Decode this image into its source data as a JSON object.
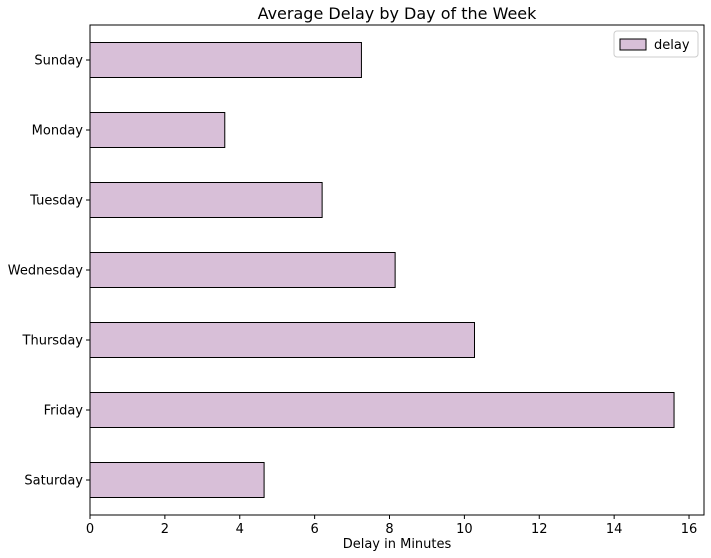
{
  "chart_data": {
    "type": "bar",
    "orientation": "horizontal",
    "title": "Average Delay by Day of the Week",
    "xlabel": "Delay in Minutes",
    "ylabel": "",
    "xlim": [
      0,
      16.4
    ],
    "x_ticks": [
      0,
      2,
      4,
      6,
      8,
      10,
      12,
      14,
      16
    ],
    "grid": false,
    "legend_position": "top-right",
    "categories": [
      "Sunday",
      "Monday",
      "Tuesday",
      "Wednesday",
      "Thursday",
      "Friday",
      "Saturday"
    ],
    "series": [
      {
        "name": "delay",
        "values": [
          7.25,
          3.6,
          6.2,
          8.15,
          10.27,
          15.6,
          4.65
        ],
        "color": "#d8bfd8",
        "edge_color": "#000000"
      }
    ]
  }
}
